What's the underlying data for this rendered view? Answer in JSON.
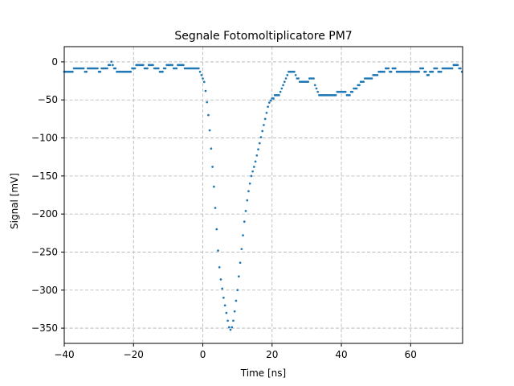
{
  "chart_data": {
    "type": "scatter",
    "title": "Segnale Fotomoltiplicatore PM7",
    "xlabel": "Time [ns]",
    "ylabel": "Signal [mV]",
    "xlim": [
      -40,
      75
    ],
    "ylim": [
      -370,
      20
    ],
    "xticks": [
      -40,
      -20,
      0,
      20,
      40,
      60
    ],
    "yticks": [
      0,
      -50,
      -100,
      -150,
      -200,
      -250,
      -300,
      -350
    ],
    "xtick_labels": [
      "−40",
      "−20",
      "0",
      "20",
      "40",
      "60"
    ],
    "ytick_labels": [
      "0",
      "−50",
      "−100",
      "−150",
      "−200",
      "−250",
      "−300",
      "−350"
    ],
    "grid": true,
    "series_color": "#1f77b4",
    "x_start": -40,
    "x_step": 0.4,
    "keypoints": [
      [
        -40,
        -13
      ],
      [
        -38,
        -13
      ],
      [
        -37,
        -8
      ],
      [
        -35,
        -8
      ],
      [
        -34,
        -13
      ],
      [
        -33,
        -8
      ],
      [
        -31,
        -8
      ],
      [
        -30,
        -13
      ],
      [
        -29,
        -8
      ],
      [
        -27.5,
        -8
      ],
      [
        -26.5,
        0
      ],
      [
        -25.5,
        -8
      ],
      [
        -24.5,
        -13
      ],
      [
        -21,
        -13
      ],
      [
        -20,
        -8
      ],
      [
        -18,
        -4
      ],
      [
        -16.5,
        -8
      ],
      [
        -15,
        -4
      ],
      [
        -14,
        -8
      ],
      [
        -12,
        -13
      ],
      [
        -11,
        -8
      ],
      [
        -9.5,
        -4
      ],
      [
        -8,
        -8
      ],
      [
        -6.5,
        -4
      ],
      [
        -5,
        -8
      ],
      [
        -1,
        -10
      ],
      [
        0,
        -20
      ],
      [
        0.5,
        -28
      ],
      [
        1,
        -45
      ],
      [
        1.5,
        -65
      ],
      [
        2,
        -90
      ],
      [
        2.5,
        -120
      ],
      [
        3,
        -150
      ],
      [
        3.5,
        -185
      ],
      [
        4,
        -220
      ],
      [
        4.5,
        -255
      ],
      [
        5,
        -280
      ],
      [
        6,
        -310
      ],
      [
        7,
        -335
      ],
      [
        7.5,
        -348
      ],
      [
        8,
        -352
      ],
      [
        8.5,
        -348
      ],
      [
        9,
        -335
      ],
      [
        10,
        -300
      ],
      [
        11,
        -255
      ],
      [
        12,
        -210
      ],
      [
        13,
        -175
      ],
      [
        14,
        -150
      ],
      [
        15,
        -135
      ],
      [
        16,
        -115
      ],
      [
        17,
        -95
      ],
      [
        18,
        -75
      ],
      [
        19,
        -55
      ],
      [
        20,
        -48
      ],
      [
        21,
        -45
      ],
      [
        22,
        -45
      ],
      [
        23,
        -33
      ],
      [
        24,
        -22
      ],
      [
        25,
        -13
      ],
      [
        26,
        -13
      ],
      [
        27,
        -18
      ],
      [
        28,
        -28
      ],
      [
        30,
        -28
      ],
      [
        31,
        -22
      ],
      [
        32,
        -22
      ],
      [
        33,
        -40
      ],
      [
        34,
        -44
      ],
      [
        38,
        -44
      ],
      [
        39,
        -40
      ],
      [
        41,
        -40
      ],
      [
        42,
        -44
      ],
      [
        43,
        -40
      ],
      [
        44,
        -35
      ],
      [
        45,
        -30
      ],
      [
        46,
        -26
      ],
      [
        47,
        -22
      ],
      [
        48,
        -22
      ],
      [
        50,
        -17
      ],
      [
        51,
        -13
      ],
      [
        52,
        -13
      ],
      [
        53,
        -8
      ],
      [
        54,
        -13
      ],
      [
        55,
        -8
      ],
      [
        56,
        -13
      ],
      [
        62,
        -13
      ],
      [
        63,
        -8
      ],
      [
        64,
        -13
      ],
      [
        65,
        -18
      ],
      [
        66,
        -13
      ],
      [
        67,
        -8
      ],
      [
        68,
        -13
      ],
      [
        70,
        -8
      ],
      [
        72,
        -8
      ],
      [
        73,
        -3
      ],
      [
        74,
        -8
      ],
      [
        75,
        -15
      ]
    ]
  }
}
